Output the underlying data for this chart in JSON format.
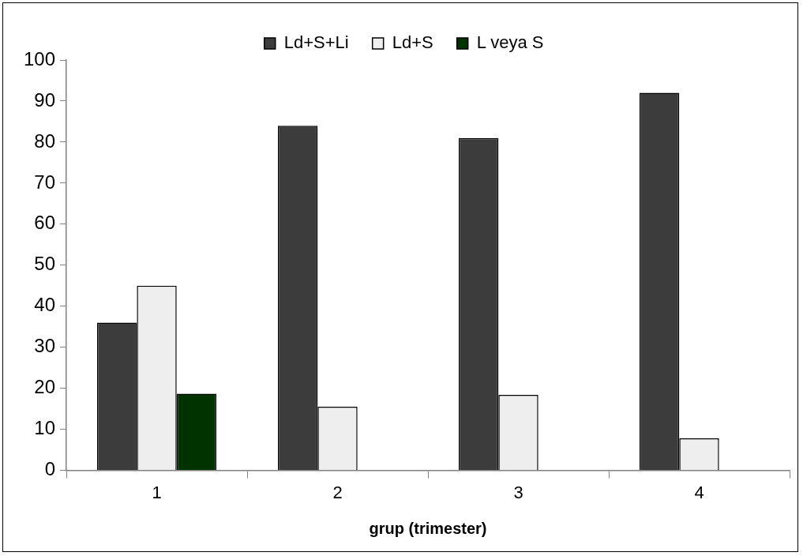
{
  "chart_data": {
    "type": "bar",
    "xlabel": "grup (trimester)",
    "categories": [
      "1",
      "2",
      "3",
      "4"
    ],
    "series": [
      {
        "name": "Ld+S+Li",
        "color": "#3c3c3c",
        "values": [
          36,
          84,
          81,
          92
        ]
      },
      {
        "name": "Ld+S",
        "color": "#eeeeee",
        "values": [
          45,
          15.5,
          18.4,
          7.8
        ]
      },
      {
        "name": "L veya S",
        "color": "#003300",
        "values": [
          18.7,
          null,
          null,
          null
        ]
      }
    ],
    "ylim": [
      0,
      100
    ],
    "yticks": [
      0,
      10,
      20,
      30,
      40,
      50,
      60,
      70,
      80,
      90,
      100
    ],
    "grid": false,
    "legend": "top"
  }
}
